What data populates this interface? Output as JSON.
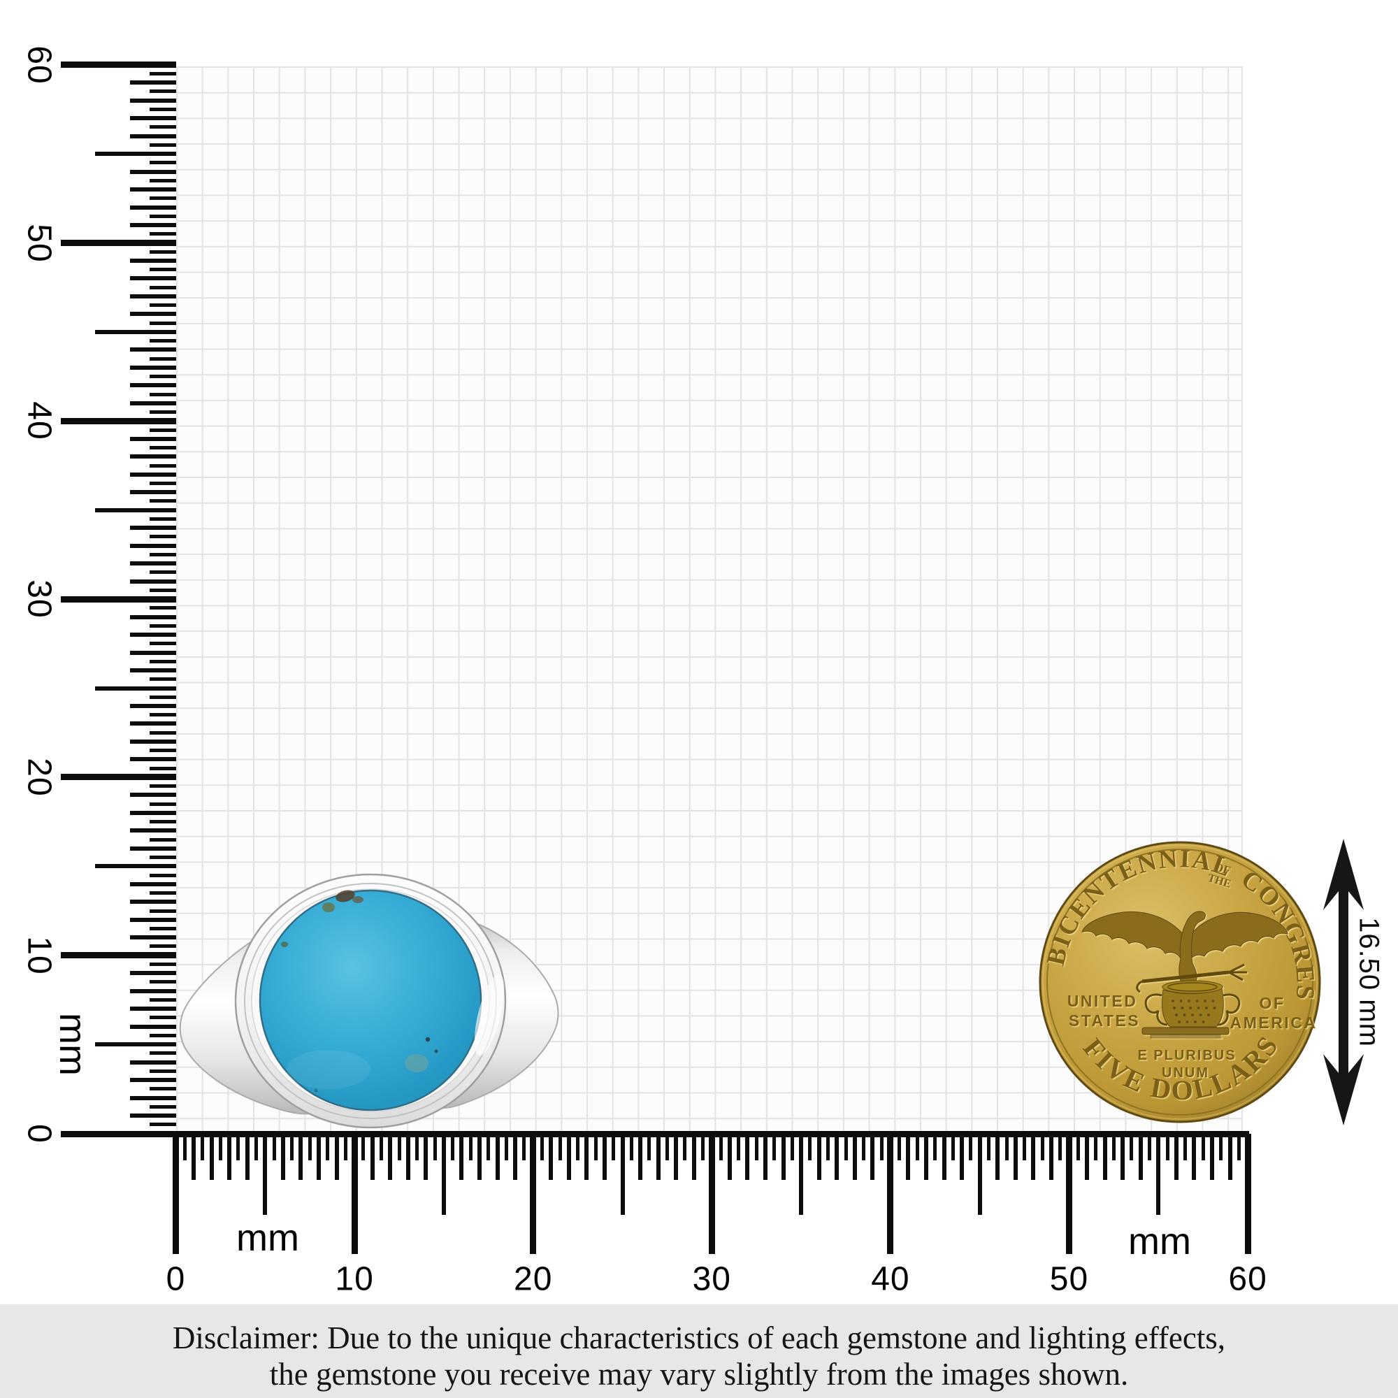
{
  "rulers": {
    "unit": "mm",
    "max_mm": 60,
    "vertical": {
      "labels": [
        "0",
        "10",
        "20",
        "30",
        "40",
        "50",
        "60"
      ],
      "unit_label": "mm"
    },
    "horizontal": {
      "labels": [
        "0",
        "10",
        "20",
        "30",
        "40",
        "50",
        "60"
      ],
      "unit_label_left": "mm",
      "unit_label_right": "mm"
    }
  },
  "measurement": {
    "coin_diameter_label": "16.50 mm"
  },
  "ring": {
    "kind": "turquoise-signet-ring",
    "stone_color": "#35abd5",
    "metal_color": "#efefef"
  },
  "coin": {
    "legend_arc_left": "BICENTENNIAL",
    "legend_small_top": "OF",
    "legend_small_bottom": "THE",
    "legend_arc_right": "CONGRESS",
    "field_left_line1": "UNITED",
    "field_left_line2": "STATES",
    "field_right_line1": "OF",
    "field_right_line2": "AMERICA",
    "motto_line1": "E PLURIBUS",
    "motto_line2": "UNUM",
    "denomination_arc": "FIVE DOLLARS",
    "trademark": "™",
    "gold_color": "#c7a43e"
  },
  "disclaimer": {
    "line1": "Disclaimer: Due to the unique characteristics of each gemstone and lighting effects,",
    "line2": "the gemstone you receive may vary slightly from the images shown."
  }
}
